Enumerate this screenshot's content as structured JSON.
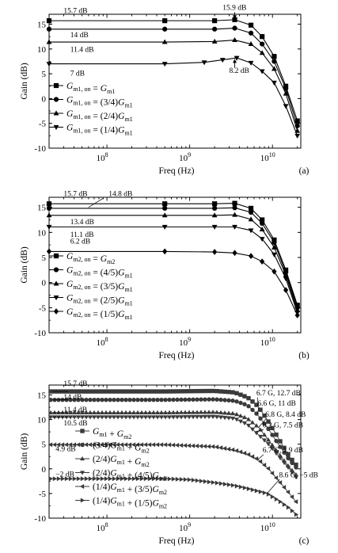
{
  "chart_data": [
    {
      "type": "line",
      "panel_label": "(a)",
      "xlabel": "Freq (Hz)",
      "ylabel": "Gain (dB)",
      "xscale": "log",
      "xlim": [
        20000000,
        22000000000
      ],
      "ylim": [
        -10,
        17
      ],
      "yticks": [
        -10,
        -5,
        0,
        5,
        10,
        15
      ],
      "xtick_labels": [
        {
          "v": 100000000,
          "b": "10",
          "e": "8"
        },
        {
          "v": 1000000000,
          "b": "10",
          "e": "9"
        },
        {
          "v": 10000000000,
          "b": "10",
          "e": "10"
        }
      ],
      "legend_position": "lower-left",
      "series": [
        {
          "name": "G_m1,on = G_m1",
          "legend": {
            "main": "G",
            "sub": "m1, on",
            "rest": [
              {
                "t": " = G"
              },
              {
                "t": "m1",
                "s": 1
              }
            ]
          },
          "marker": "square",
          "x": [
            20000000.0,
            500000000.0,
            2000000000.0,
            3500000000.0,
            5500000000.0,
            7500000000.0,
            10500000000.0,
            14500000000.0,
            20000000000.0
          ],
          "y": [
            15.7,
            15.7,
            15.7,
            15.9,
            14.8,
            12.5,
            8.5,
            2.5,
            -4.5
          ]
        },
        {
          "name": "G_m1,on = (3/4)G_m1",
          "legend": {
            "main": "G",
            "sub": "m1, on",
            "rest": [
              {
                "t": " = (3/4)G"
              },
              {
                "t": "m1",
                "s": 1
              }
            ]
          },
          "marker": "circle",
          "x": [
            20000000.0,
            500000000.0,
            2000000000.0,
            3500000000.0,
            5500000000.0,
            7500000000.0,
            10500000000.0,
            14500000000.0,
            20000000000.0
          ],
          "y": [
            14,
            14,
            14,
            14.2,
            13.2,
            11,
            7.5,
            2,
            -5.5
          ]
        },
        {
          "name": "G_m1,on = (2/4)G_m1",
          "legend": {
            "main": "G",
            "sub": "m1, on",
            "rest": [
              {
                "t": " = (2/4)G"
              },
              {
                "t": "m1",
                "s": 1
              }
            ]
          },
          "marker": "triangle-up",
          "x": [
            20000000.0,
            500000000.0,
            2000000000.0,
            3500000000.0,
            5500000000.0,
            7500000000.0,
            10500000000.0,
            14500000000.0,
            20000000000.0
          ],
          "y": [
            11.4,
            11.4,
            11.5,
            11.8,
            11,
            9.2,
            6,
            1,
            -6.5
          ]
        },
        {
          "name": "G_m1,on = (1/4)G_m1",
          "legend": {
            "main": "G",
            "sub": "m1, on",
            "rest": [
              {
                "t": " = (1/4)G"
              },
              {
                "t": "m1",
                "s": 1
              }
            ]
          },
          "marker": "triangle-down",
          "x": [
            20000000.0,
            500000000.0,
            1500000000.0,
            2500000000.0,
            3700000000.0,
            5500000000.0,
            7500000000.0,
            10500000000.0,
            14500000000.0,
            20000000000.0
          ],
          "y": [
            7,
            7,
            7.3,
            7.8,
            8.2,
            7.2,
            5.5,
            3.2,
            -1.5,
            -7.5
          ]
        }
      ],
      "annotations": [
        {
          "text": "15.7 dB",
          "x": 30000000.0,
          "y": 17.2
        },
        {
          "text": "14 dB",
          "x": 36000000.0,
          "y": 12.4
        },
        {
          "text": "11.4 dB",
          "x": 36000000.0,
          "y": 9.4
        },
        {
          "text": "7 dB",
          "x": 36000000.0,
          "y": 4.6
        },
        {
          "text": "15.9 dB",
          "x": 2500000000.0,
          "y": 17.9
        },
        {
          "text": "8.2 dB",
          "x": 3000000000.0,
          "y": 5.2
        }
      ]
    },
    {
      "type": "line",
      "panel_label": "(b)",
      "xlabel": "Freq (Hz)",
      "ylabel": "Gain (dB)",
      "xscale": "log",
      "xlim": [
        20000000,
        22000000000
      ],
      "ylim": [
        -10,
        17
      ],
      "yticks": [
        -10,
        -5,
        0,
        5,
        10,
        15
      ],
      "xtick_labels": [
        {
          "v": 100000000,
          "b": "10",
          "e": "8"
        },
        {
          "v": 1000000000,
          "b": "10",
          "e": "9"
        },
        {
          "v": 10000000000,
          "b": "10",
          "e": "10"
        }
      ],
      "legend_position": "lower-left",
      "series": [
        {
          "name": "G_m2,on = G_m2",
          "legend": {
            "main": "G",
            "sub": "m2, on",
            "rest": [
              {
                "t": " = G"
              },
              {
                "t": "m2",
                "s": 1
              }
            ]
          },
          "marker": "square",
          "x": [
            20000000.0,
            500000000.0,
            2000000000.0,
            3500000000.0,
            5500000000.0,
            7500000000.0,
            10500000000.0,
            14500000000.0,
            20000000000.0
          ],
          "y": [
            15.7,
            15.7,
            15.7,
            15.8,
            14.8,
            12.5,
            8.5,
            2.5,
            -4.5
          ]
        },
        {
          "name": "G_m2,on = (4/5)G_m1",
          "legend": {
            "main": "G",
            "sub": "m2, on",
            "rest": [
              {
                "t": " = (4/5)G"
              },
              {
                "t": "m1",
                "s": 1
              }
            ]
          },
          "marker": "circle",
          "x": [
            20000000.0,
            500000000.0,
            2000000000.0,
            3500000000.0,
            5500000000.0,
            7500000000.0,
            10500000000.0,
            14500000000.0,
            20000000000.0
          ],
          "y": [
            14.8,
            14.8,
            14.8,
            14.9,
            14,
            11.8,
            8,
            2,
            -5
          ]
        },
        {
          "name": "G_m2,on = (3/5)G_m1",
          "legend": {
            "main": "G",
            "sub": "m2, on",
            "rest": [
              {
                "t": " = (3/5)G"
              },
              {
                "t": "m1",
                "s": 1
              }
            ]
          },
          "marker": "triangle-up",
          "x": [
            20000000.0,
            500000000.0,
            2000000000.0,
            3500000000.0,
            5500000000.0,
            7500000000.0,
            10500000000.0,
            14500000000.0,
            20000000000.0
          ],
          "y": [
            13.4,
            13.4,
            13.4,
            13.5,
            12.6,
            10.6,
            7,
            1.5,
            -5.5
          ]
        },
        {
          "name": "G_m2,on = (2/5)G_m1",
          "legend": {
            "main": "G",
            "sub": "m2, on",
            "rest": [
              {
                "t": " = (2/5)G"
              },
              {
                "t": "m1",
                "s": 1
              }
            ]
          },
          "marker": "triangle-down",
          "x": [
            20000000.0,
            500000000.0,
            2000000000.0,
            3500000000.0,
            5500000000.0,
            7500000000.0,
            10500000000.0,
            14500000000.0,
            20000000000.0
          ],
          "y": [
            11.1,
            11.1,
            11.1,
            11.1,
            10.4,
            8.7,
            5.6,
            0.8,
            -6
          ]
        },
        {
          "name": "G_m2,on = (1/5)G_m1",
          "legend": {
            "main": "G",
            "sub": "m2, on",
            "rest": [
              {
                "t": " = (1/5)G"
              },
              {
                "t": "m1",
                "s": 1
              }
            ]
          },
          "marker": "diamond",
          "x": [
            20000000.0,
            500000000.0,
            2000000000.0,
            3500000000.0,
            5500000000.0,
            7500000000.0,
            10500000000.0,
            14500000000.0,
            20000000000.0
          ],
          "y": [
            6.2,
            6.2,
            6.1,
            5.9,
            5.3,
            4.2,
            2.2,
            -1.5,
            -6.5
          ]
        }
      ],
      "annotations": [
        {
          "text": "15.7 dB",
          "x": 30000000.0,
          "y": 17.2
        },
        {
          "text": "14.8 dB",
          "x": 105000000.0,
          "y": 17.2
        },
        {
          "text": "13.4 dB",
          "x": 36000000.0,
          "y": 11.6
        },
        {
          "text": "11.1 dB",
          "x": 36000000.0,
          "y": 9.1
        },
        {
          "text": "6.2 dB",
          "x": 36000000.0,
          "y": 7.8
        }
      ]
    },
    {
      "type": "line",
      "panel_label": "(c)",
      "xlabel": "Freq (Hz)",
      "ylabel": "Gain (dB)",
      "xscale": "log",
      "xlim": [
        20000000,
        22000000000
      ],
      "ylim": [
        -10,
        17
      ],
      "yticks": [
        -10,
        -5,
        0,
        5,
        10,
        15
      ],
      "xtick_labels": [
        {
          "v": 100000000,
          "b": "10",
          "e": "8"
        },
        {
          "v": 1000000000,
          "b": "10",
          "e": "9"
        },
        {
          "v": 10000000000,
          "b": "10",
          "e": "10"
        }
      ],
      "legend_position": "left",
      "series": [
        {
          "name": "G_m1 + G_m2",
          "legend": {
            "main": "",
            "sub": "",
            "rest": [
              {
                "t": "G"
              },
              {
                "t": "m1",
                "s": 1
              },
              {
                "t": " + G"
              },
              {
                "t": "m2",
                "s": 1
              }
            ]
          },
          "marker": "square",
          "x": [
            20000000.0,
            500000000.0,
            2000000000.0,
            3500000000.0,
            5000000000.0,
            6700000000.0,
            9000000000.0,
            12000000000.0,
            16000000000.0,
            20000000000.0
          ],
          "y": [
            15.7,
            15.7,
            15.8,
            15.5,
            14.5,
            12.7,
            9.5,
            6,
            2.5,
            0.5
          ]
        },
        {
          "name": "(3/4)G_m1 + G_m2",
          "legend": {
            "main": "",
            "sub": "",
            "rest": [
              {
                "t": "(3/4)G"
              },
              {
                "t": "m1",
                "s": 1
              },
              {
                "t": " + G"
              },
              {
                "t": "m2",
                "s": 1
              }
            ]
          },
          "marker": "circle",
          "x": [
            20000000.0,
            500000000.0,
            2000000000.0,
            3500000000.0,
            5000000000.0,
            6600000000.0,
            9000000000.0,
            12000000000.0,
            16000000000.0,
            20000000000.0
          ],
          "y": [
            14,
            14,
            14.1,
            13.8,
            12.9,
            11,
            8,
            4.8,
            1.8,
            0
          ]
        },
        {
          "name": "(2/4)G_m1 + G_m2",
          "legend": {
            "main": "",
            "sub": "",
            "rest": [
              {
                "t": "(2/4)G"
              },
              {
                "t": "m1",
                "s": 1
              },
              {
                "t": " + G"
              },
              {
                "t": "m2",
                "s": 1
              }
            ]
          },
          "marker": "triangle-up",
          "x": [
            20000000.0,
            500000000.0,
            2000000000.0,
            3500000000.0,
            5000000000.0,
            6800000000.0,
            9000000000.0,
            12000000000.0,
            16000000000.0,
            20000000000.0
          ],
          "y": [
            11.4,
            11.4,
            11.5,
            11.2,
            10.2,
            8.4,
            5.8,
            3,
            0.3,
            -1.5
          ]
        },
        {
          "name": "(2/4)G_m1 + (4/5)G_m2",
          "legend": {
            "main": "",
            "sub": "",
            "rest": [
              {
                "t": "(2/4)G"
              },
              {
                "t": "m1",
                "s": 1
              },
              {
                "t": " + (4/5)G"
              },
              {
                "t": "m2",
                "s": 1
              }
            ]
          },
          "marker": "triangle-down",
          "x": [
            20000000.0,
            500000000.0,
            2000000000.0,
            3500000000.0,
            5000000000.0,
            6200000000.0,
            9000000000.0,
            12000000000.0,
            16000000000.0,
            20000000000.0
          ],
          "y": [
            10.5,
            10.5,
            10.6,
            10.2,
            9,
            7.5,
            5,
            2.5,
            0,
            -2
          ]
        },
        {
          "name": "(1/4)G_m1 + (3/5)G_m2",
          "legend": {
            "main": "",
            "sub": "",
            "rest": [
              {
                "t": "(1/4)G"
              },
              {
                "t": "m1",
                "s": 1
              },
              {
                "t": " + (3/5)G"
              },
              {
                "t": "m2",
                "s": 1
              }
            ]
          },
          "marker": "triangle-left",
          "x": [
            20000000.0,
            500000000.0,
            2000000000.0,
            3500000000.0,
            5000000000.0,
            6700000000.0,
            9000000000.0,
            12000000000.0,
            16000000000.0,
            20000000000.0
          ],
          "y": [
            4.9,
            4.9,
            4.5,
            3.8,
            3,
            1.9,
            0,
            -2.5,
            -5,
            -7
          ]
        },
        {
          "name": "(1/4)G_m1 + (1/5)G_m2",
          "legend": {
            "main": "",
            "sub": "",
            "rest": [
              {
                "t": "(1/4)G"
              },
              {
                "t": "m1",
                "s": 1
              },
              {
                "t": " + (1/5)G"
              },
              {
                "t": "m2",
                "s": 1
              }
            ]
          },
          "marker": "triangle-right",
          "x": [
            20000000.0,
            500000000.0,
            1000000000.0,
            2000000000.0,
            3500000000.0,
            5000000000.0,
            8600000000.0,
            12000000000.0,
            16000000000.0,
            20000000000.0
          ],
          "y": [
            -2,
            -2,
            -2.2,
            -2.8,
            -3.4,
            -4,
            -5,
            -6.5,
            -8,
            -9.5
          ]
        }
      ],
      "annotations": [
        {
          "text": "15.7 dB",
          "x": 30000000.0,
          "y": 16.8
        },
        {
          "text": "14 dB",
          "x": 30000000.0,
          "y": 14.1
        },
        {
          "text": "11.4 dB",
          "x": 30000000.0,
          "y": 11.5
        },
        {
          "text": "10.5 dB",
          "x": 30000000.0,
          "y": 8.8
        },
        {
          "text": "4.9 dB",
          "x": 24000000.0,
          "y": 3.6
        },
        {
          "text": "−2 dB",
          "x": 24000000.0,
          "y": -1.6
        },
        {
          "text": "6.7 G, 12.7 dB",
          "x": 6400000000.0,
          "y": 14.9
        },
        {
          "text": "6.6 G, 11 dB",
          "x": 6600000000.0,
          "y": 12.8
        },
        {
          "text": "6.8 G, 8.4 dB",
          "x": 8200000000.0,
          "y": 10.6
        },
        {
          "text": "6.2 G, 7.5 dB",
          "x": 7600000000.0,
          "y": 8.4
        },
        {
          "text": "6.7 G, 1.9 dB",
          "x": 7600000000.0,
          "y": 3.3
        },
        {
          "text": "8.6 G, −5 dB",
          "x": 12000000000.0,
          "y": -1.7
        }
      ]
    }
  ]
}
